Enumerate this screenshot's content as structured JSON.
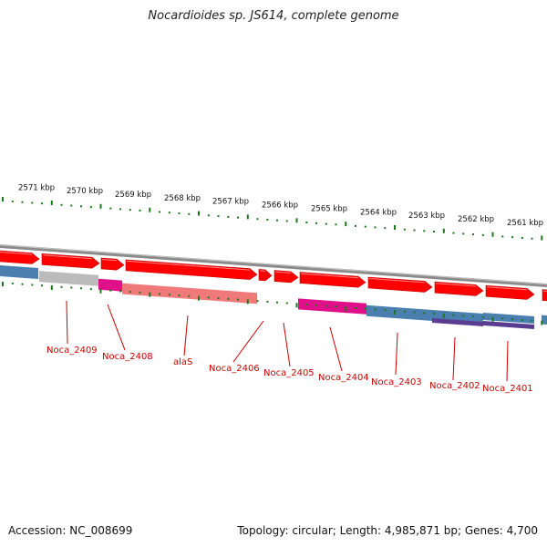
{
  "title": "Nocardioides sp. JS614, complete genome",
  "footer": {
    "accession": "Accession: NC_008699",
    "summary": "Topology: circular; Length: 4,985,871 bp; Genes: 4,700"
  },
  "colors": {
    "forward_cds": "#ff0000",
    "backbone": "#777777",
    "ticks": "#1a7a1a",
    "label": "#cc0000",
    "feature_grey": "#bbbbbb",
    "feature_magenta": "#e0108a",
    "feature_pink": "#f07a7a",
    "feature_blue": "#4a7fb0",
    "feature_purple": "#5a3d90"
  },
  "scale_labels": [
    "2571 kbp",
    "2570 kbp",
    "2569 kbp",
    "2568 kbp",
    "2567 kbp",
    "2566 kbp",
    "2565 kbp",
    "2564 kbp",
    "2563 kbp",
    "2562 kbp",
    "2561 kbp"
  ],
  "gene_labels": [
    "Noca_2409",
    "Noca_2408",
    "alaS",
    "Noca_2406",
    "Noca_2405",
    "Noca_2404",
    "Noca_2403",
    "Noca_2402",
    "Noca_2401"
  ]
}
